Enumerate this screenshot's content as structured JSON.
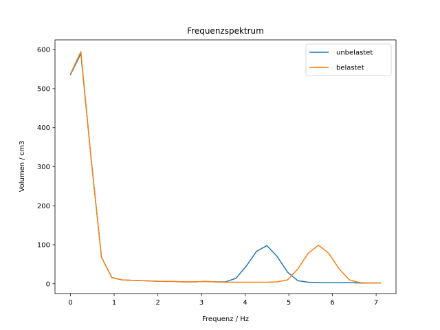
{
  "chart_data": {
    "type": "line",
    "title": "Frequenzspektrum",
    "xlabel": "Frequenz / Hz",
    "ylabel": "Volumen / cm3",
    "xlim": [
      -0.355,
      7.455
    ],
    "ylim": [
      -25,
      625
    ],
    "xticks": [
      0,
      1,
      2,
      3,
      4,
      5,
      6,
      7
    ],
    "yticks": [
      0,
      100,
      200,
      300,
      400,
      500,
      600
    ],
    "grid": false,
    "legend_position": "top-right",
    "x": [
      0.0,
      0.237,
      0.473,
      0.71,
      0.947,
      1.183,
      1.42,
      1.657,
      1.893,
      2.13,
      2.367,
      2.603,
      2.84,
      3.077,
      3.313,
      3.55,
      3.787,
      4.023,
      4.26,
      4.497,
      4.733,
      4.97,
      5.207,
      5.443,
      5.68,
      5.917,
      6.153,
      6.39,
      6.627,
      6.863,
      7.1
    ],
    "series": [
      {
        "name": "unbelastet",
        "color": "#1f77b4",
        "values": [
          536,
          590,
          320,
          68,
          16,
          10,
          9,
          8,
          7,
          6,
          6,
          5,
          5,
          6,
          5,
          5,
          14,
          45,
          83,
          98,
          70,
          30,
          8,
          4,
          3,
          3,
          3,
          3,
          2,
          2,
          2
        ]
      },
      {
        "name": "belastet",
        "color": "#ff7f0e",
        "values": [
          538,
          595,
          320,
          68,
          16,
          10,
          9,
          8,
          7,
          6,
          6,
          5,
          5,
          6,
          5,
          4,
          4,
          4,
          4,
          4,
          5,
          10,
          38,
          78,
          99,
          78,
          38,
          10,
          3,
          2,
          2
        ]
      }
    ]
  }
}
